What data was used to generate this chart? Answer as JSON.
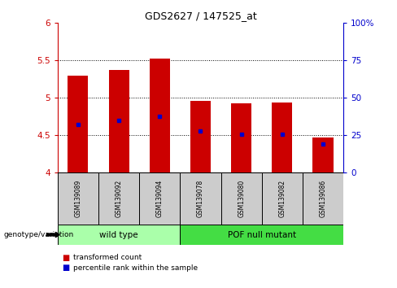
{
  "title": "GDS2627 / 147525_at",
  "samples": [
    "GSM139089",
    "GSM139092",
    "GSM139094",
    "GSM139078",
    "GSM139080",
    "GSM139082",
    "GSM139086"
  ],
  "bar_tops": [
    5.3,
    5.37,
    5.52,
    4.96,
    4.93,
    4.94,
    4.47
  ],
  "bar_base": 4.0,
  "blue_markers": [
    4.65,
    4.7,
    4.75,
    4.56,
    4.52,
    4.52,
    4.38
  ],
  "bar_color": "#cc0000",
  "blue_color": "#0000cc",
  "ylim_left": [
    4.0,
    6.0
  ],
  "ylim_right": [
    0,
    100
  ],
  "yticks_left": [
    4.0,
    4.5,
    5.0,
    5.5,
    6.0
  ],
  "ytick_labels_left": [
    "4",
    "4.5",
    "5",
    "5.5",
    "6"
  ],
  "yticks_right": [
    0,
    25,
    50,
    75,
    100
  ],
  "ytick_labels_right": [
    "0",
    "25",
    "50",
    "75",
    "100%"
  ],
  "grid_lines": [
    4.5,
    5.0,
    5.5
  ],
  "group1_label": "wild type",
  "group2_label": "POF null mutant",
  "group1_color": "#aaffaa",
  "group2_color": "#44dd44",
  "group_row_label": "genotype/variation",
  "sample_cell_color": "#cccccc",
  "legend_red_label": "transformed count",
  "legend_blue_label": "percentile rank within the sample",
  "bar_width": 0.5,
  "left_yaxis_color": "#cc0000",
  "right_yaxis_color": "#0000cc"
}
